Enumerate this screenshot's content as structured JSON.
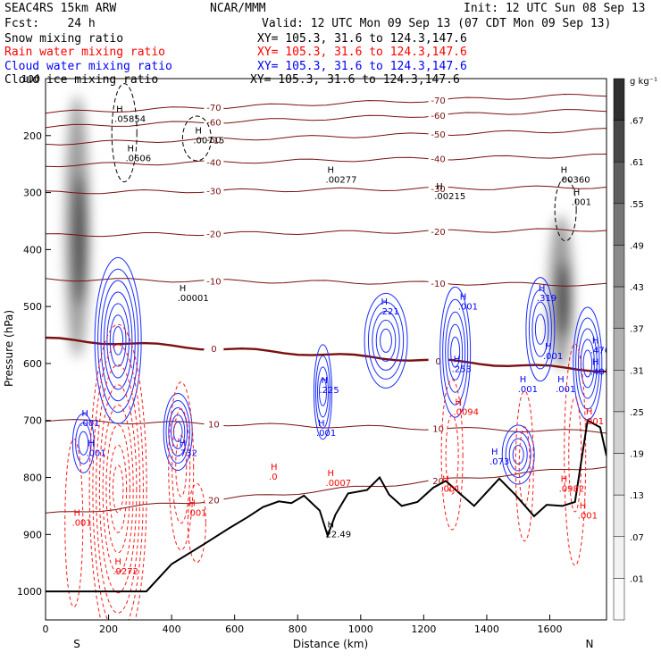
{
  "header": {
    "model": "SEAC4RS 15km ARW",
    "org": "NCAR/MMM",
    "init": "Init: 12 UTC Sun 08 Sep 13",
    "fcst": "Fcst:    24 h",
    "valid": "Valid: 12 UTC Mon 09 Sep 13 (07 CDT Mon 09 Sep 13)",
    "rows": [
      {
        "name": "Snow mixing ratio",
        "xy": "XY= 105.3, 31.6 to 124.3,147.6",
        "color": "#000000"
      },
      {
        "name": "Rain water mixing ratio",
        "xy": "XY= 105.3, 31.6 to 124.3,147.6",
        "color": "#ff0000"
      },
      {
        "name": "Cloud water mixing ratio",
        "xy": "XY= 105.3, 31.6 to 124.3,147.6",
        "color": "#0000ff"
      },
      {
        "name": "Cloud ice mixing ratio",
        "xy": "XY= 105.3, 31.6 to 124.3,147.6",
        "color": "#000000"
      }
    ]
  },
  "colorbar": {
    "unit": "g kg⁻¹",
    "labels": [
      ".67",
      ".61",
      ".55",
      ".49",
      ".43",
      ".37",
      ".31",
      ".25",
      ".19",
      ".13",
      ".07",
      ".01"
    ],
    "colors": [
      "#2e2e2e",
      "#474747",
      "#5e5e5e",
      "#757575",
      "#8a8a8a",
      "#9e9e9e",
      "#b0b0b0",
      "#c2c2c2",
      "#d1d1d1",
      "#dedede",
      "#e9e9e9",
      "#f2f2f2",
      "#fafafa"
    ]
  },
  "chart_data": {
    "type": "cross-section",
    "xlabel": "Distance (km)",
    "ylabel": "Pressure (hPa)",
    "xlim": [
      0,
      1780
    ],
    "ylim": [
      1050,
      100
    ],
    "x_ticks": [
      0,
      200,
      400,
      600,
      800,
      1000,
      1200,
      1400,
      1600
    ],
    "y_ticks": [
      200,
      300,
      400,
      500,
      600,
      700,
      800,
      900,
      1000
    ],
    "y_tick_labels": [
      "200",
      "300",
      "400",
      "500",
      "600",
      "700",
      "800",
      "900",
      "1000"
    ],
    "y_top_label": "100",
    "left_end": "S",
    "right_end": "N",
    "terrain": {
      "x": [
        0,
        320,
        400,
        500,
        580,
        640,
        690,
        740,
        780,
        820,
        870,
        895,
        920,
        960,
        1020,
        1060,
        1090,
        1130,
        1180,
        1230,
        1270,
        1310,
        1360,
        1400,
        1440,
        1490,
        1550,
        1590,
        1640,
        1680,
        1720,
        1760,
        1780
      ],
      "p": [
        1000,
        1000,
        952,
        918,
        890,
        870,
        852,
        842,
        845,
        832,
        858,
        902,
        865,
        828,
        822,
        800,
        830,
        850,
        843,
        818,
        806,
        826,
        850,
        826,
        802,
        830,
        868,
        848,
        850,
        843,
        700,
        712,
        762
      ]
    },
    "isotherms": [
      {
        "label": "-70",
        "p0": 160,
        "p1": 128
      },
      {
        "label": "-60",
        "p0": 185,
        "p1": 155
      },
      {
        "label": "-50",
        "p0": 214,
        "p1": 190
      },
      {
        "label": "-40",
        "p0": 252,
        "p1": 235
      },
      {
        "label": "-30",
        "p0": 300,
        "p1": 290
      },
      {
        "label": "-20",
        "p0": 375,
        "p1": 365
      },
      {
        "label": "-10",
        "p0": 452,
        "p1": 462
      },
      {
        "label": "0",
        "p0": 557,
        "p1": 612
      },
      {
        "label": "10",
        "p0": 700,
        "p1": 720
      },
      {
        "label": "20",
        "p0": 865,
        "p1": 780
      }
    ],
    "ice_plumes": [
      {
        "x": 100,
        "p_top": 130,
        "p_bottom": 590
      },
      {
        "x": 1635,
        "p_top": 340,
        "p_bottom": 610
      }
    ],
    "max_labels": [
      {
        "text": ".05854",
        "x": 230,
        "p": 176,
        "color": "#000000"
      },
      {
        "text": ".0606",
        "x": 265,
        "p": 245,
        "color": "#000000"
      },
      {
        "text": ".00715",
        "x": 480,
        "p": 214,
        "color": "#000000"
      },
      {
        "text": ".00277",
        "x": 900,
        "p": 283,
        "color": "#000000"
      },
      {
        "text": ".00215",
        "x": 1245,
        "p": 312,
        "color": "#000000"
      },
      {
        "text": ".00360",
        "x": 1640,
        "p": 283,
        "color": "#000000"
      },
      {
        "text": ".001",
        "x": 1680,
        "p": 322,
        "color": "#000000"
      },
      {
        "text": ".00001",
        "x": 430,
        "p": 490,
        "color": "#000000"
      },
      {
        "text": "22.49",
        "x": 900,
        "p": 905,
        "color": "#000000"
      },
      {
        "text": ".221",
        "x": 1070,
        "p": 514,
        "color": "#0000ff"
      },
      {
        "text": ".001",
        "x": 1320,
        "p": 505,
        "color": "#0000ff"
      },
      {
        "text": ".319",
        "x": 1570,
        "p": 490,
        "color": "#0000ff"
      },
      {
        "text": ".253",
        "x": 1300,
        "p": 615,
        "color": "#0000ff"
      },
      {
        "text": ".225",
        "x": 880,
        "p": 652,
        "color": "#0000ff"
      },
      {
        "text": ".001",
        "x": 870,
        "p": 727,
        "color": "#0000ff"
      },
      {
        "text": ".073",
        "x": 1420,
        "p": 777,
        "color": "#0000ff"
      },
      {
        "text": ".732",
        "x": 430,
        "p": 762,
        "color": "#0000ff"
      },
      {
        "text": ".001",
        "x": 120,
        "p": 710,
        "color": "#0000ff"
      },
      {
        "text": ".001",
        "x": 140,
        "p": 762,
        "color": "#0000ff"
      },
      {
        "text": ".476",
        "x": 1740,
        "p": 582,
        "color": "#0000ff"
      },
      {
        "text": ".401",
        "x": 1740,
        "p": 620,
        "color": "#0000ff"
      },
      {
        "text": ".001",
        "x": 1590,
        "p": 592,
        "color": "#0000ff"
      },
      {
        "text": ".001",
        "x": 1510,
        "p": 650,
        "color": "#0000ff"
      },
      {
        "text": ".001",
        "x": 1630,
        "p": 650,
        "color": "#0000ff"
      },
      {
        "text": ".0094",
        "x": 1305,
        "p": 690,
        "color": "#ff0000"
      },
      {
        "text": ".0007",
        "x": 900,
        "p": 815,
        "color": "#ff0000"
      },
      {
        "text": ".0",
        "x": 720,
        "p": 804,
        "color": "#ff0000"
      },
      {
        "text": ".0982",
        "x": 1640,
        "p": 825,
        "color": "#ff0000"
      },
      {
        "text": ".001",
        "x": 1265,
        "p": 825,
        "color": "#ff0000"
      },
      {
        "text": ".001",
        "x": 1700,
        "p": 872,
        "color": "#ff0000"
      },
      {
        "text": ".001",
        "x": 1720,
        "p": 707,
        "color": "#ff0000"
      },
      {
        "text": ".001",
        "x": 460,
        "p": 867,
        "color": "#ff0000"
      },
      {
        "text": ".9272",
        "x": 225,
        "p": 970,
        "color": "#ff0000"
      },
      {
        "text": ".001",
        "x": 95,
        "p": 885,
        "color": "#ff0000"
      }
    ]
  }
}
